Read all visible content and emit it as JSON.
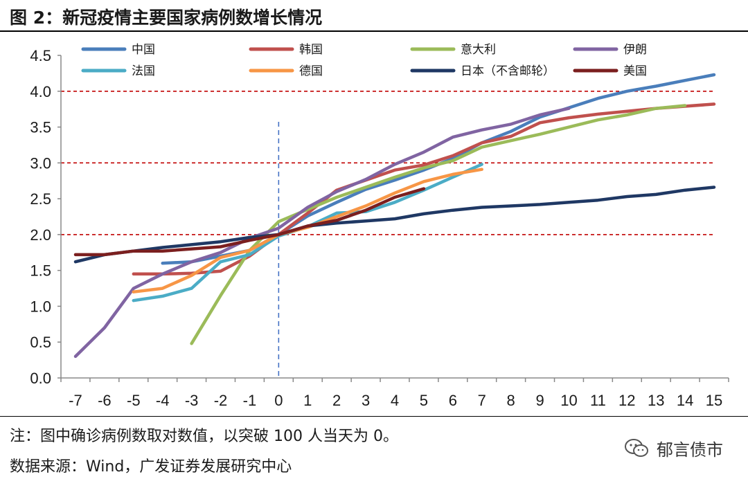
{
  "header": {
    "title": "图 2：新冠疫情主要国家病例数增长情况"
  },
  "footer": {
    "note": "注：图中确诊病例数取对数值，以突破 100 人当天为 0。",
    "source": "数据来源：Wind，广发证券发展研究中心",
    "watermark": "郁言债市"
  },
  "chart_data": {
    "type": "line",
    "title": "",
    "xlabel": "",
    "ylabel": "",
    "xlim": [
      -7,
      15
    ],
    "ylim": [
      0,
      4.5
    ],
    "yticks": [
      "0.0",
      "0.5",
      "1.0",
      "1.5",
      "2.0",
      "2.5",
      "3.0",
      "3.5",
      "4.0",
      "4.5"
    ],
    "xticks": [
      "-7",
      "-6",
      "-5",
      "-4",
      "-3",
      "-2",
      "-1",
      "0",
      "1",
      "2",
      "3",
      "4",
      "5",
      "6",
      "7",
      "8",
      "9",
      "10",
      "11",
      "12",
      "13",
      "14",
      "15"
    ],
    "legend_position": "top",
    "reference_lines": [
      {
        "axis": "y",
        "value": 2.0,
        "color": "#c00000",
        "style": "dashed"
      },
      {
        "axis": "y",
        "value": 3.0,
        "color": "#c00000",
        "style": "dashed"
      },
      {
        "axis": "y",
        "value": 4.0,
        "color": "#c00000",
        "style": "dashed"
      },
      {
        "axis": "x",
        "value": 0,
        "color": "#4472c4",
        "style": "dashed"
      }
    ],
    "series": [
      {
        "name": "中国",
        "color": "#4a7ebb",
        "x": [
          -4,
          -3,
          -2,
          -1,
          0,
          1,
          2,
          3,
          4,
          5,
          6,
          7,
          8,
          9,
          10,
          11,
          12,
          13,
          14,
          15
        ],
        "y": [
          1.6,
          1.62,
          1.7,
          1.78,
          2.0,
          2.26,
          2.45,
          2.63,
          2.76,
          2.9,
          3.06,
          3.28,
          3.44,
          3.64,
          3.77,
          3.9,
          4.0,
          4.07,
          4.15,
          4.23
        ]
      },
      {
        "name": "韩国",
        "color": "#c0504d",
        "x": [
          -5,
          -4,
          -3,
          -2,
          -1,
          0,
          1,
          2,
          3,
          4,
          5,
          6,
          7,
          8,
          9,
          10,
          11,
          12,
          13,
          14,
          15
        ],
        "y": [
          1.45,
          1.45,
          1.46,
          1.49,
          1.7,
          2.0,
          2.3,
          2.62,
          2.76,
          2.9,
          2.97,
          3.1,
          3.28,
          3.37,
          3.56,
          3.63,
          3.68,
          3.72,
          3.76,
          3.79,
          3.82
        ]
      },
      {
        "name": "意大利",
        "color": "#9bbb59",
        "x": [
          -3,
          -2,
          -1,
          0,
          1,
          2,
          3,
          4,
          5,
          6,
          7,
          8,
          9,
          10,
          11,
          12,
          13,
          14
        ],
        "y": [
          0.48,
          1.15,
          1.78,
          2.18,
          2.35,
          2.52,
          2.66,
          2.8,
          2.93,
          3.03,
          3.22,
          3.31,
          3.4,
          3.5,
          3.6,
          3.67,
          3.76,
          3.8
        ]
      },
      {
        "name": "伊朗",
        "color": "#8064a2",
        "x": [
          -7,
          -6,
          -5,
          -4,
          -3,
          -2,
          -1,
          0,
          1,
          2,
          3,
          4,
          5,
          6,
          7,
          8,
          9,
          10
        ],
        "y": [
          0.3,
          0.7,
          1.25,
          1.45,
          1.62,
          1.75,
          1.95,
          2.09,
          2.38,
          2.6,
          2.77,
          2.98,
          3.15,
          3.36,
          3.46,
          3.54,
          3.67,
          3.76
        ]
      },
      {
        "name": "法国",
        "color": "#4bacc6",
        "x": [
          -5,
          -4,
          -3,
          -2,
          -1,
          0,
          1,
          2,
          3,
          4,
          5,
          6,
          7
        ],
        "y": [
          1.08,
          1.14,
          1.25,
          1.62,
          1.72,
          1.98,
          2.11,
          2.3,
          2.32,
          2.45,
          2.62,
          2.8,
          2.98
        ]
      },
      {
        "name": "德国",
        "color": "#f79646",
        "x": [
          -5,
          -4,
          -3,
          -2,
          -1,
          0,
          1,
          2,
          3,
          4,
          5,
          6,
          7
        ],
        "y": [
          1.2,
          1.25,
          1.43,
          1.68,
          1.78,
          2.0,
          2.1,
          2.25,
          2.4,
          2.58,
          2.74,
          2.84,
          2.91
        ]
      },
      {
        "name": "日本（不含邮轮）",
        "color": "#1f3864",
        "x": [
          -7,
          -6,
          -5,
          -4,
          -3,
          -2,
          -1,
          0,
          1,
          2,
          3,
          4,
          5,
          6,
          7,
          8,
          9,
          10,
          11,
          12,
          13,
          14,
          15
        ],
        "y": [
          1.62,
          1.72,
          1.77,
          1.82,
          1.86,
          1.9,
          1.96,
          2.0,
          2.12,
          2.16,
          2.19,
          2.22,
          2.29,
          2.34,
          2.38,
          2.4,
          2.42,
          2.45,
          2.48,
          2.53,
          2.56,
          2.62,
          2.66
        ]
      },
      {
        "name": "美国",
        "color": "#7b1f1f",
        "x": [
          -7,
          -6,
          -5,
          -4,
          -3,
          -2,
          -1,
          0,
          1,
          2,
          3,
          4,
          5
        ],
        "y": [
          1.72,
          1.72,
          1.77,
          1.77,
          1.8,
          1.83,
          1.92,
          2.0,
          2.12,
          2.2,
          2.34,
          2.52,
          2.64
        ]
      }
    ]
  }
}
